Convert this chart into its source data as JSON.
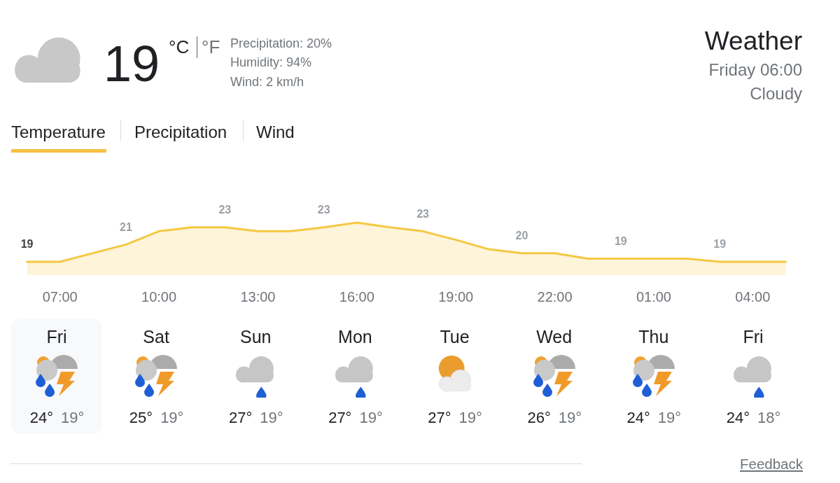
{
  "chart_data": [
    {
      "type": "area",
      "title": "Weather",
      "subtitle": "Friday 06:00",
      "categories": [
        null,
        "07:00",
        null,
        null,
        "10:00",
        null,
        null,
        "13:00",
        null,
        null,
        "16:00",
        null,
        null,
        "19:00",
        null,
        null,
        "22:00",
        null,
        null,
        "01:00",
        null,
        null,
        "04:00",
        null
      ],
      "values": [
        19,
        19,
        20.1,
        21.2,
        22.9,
        23.4,
        23.4,
        22.9,
        22.9,
        23.4,
        24,
        23.4,
        22.9,
        21.8,
        20.6,
        20.1,
        20.1,
        19.4,
        19.4,
        19.4,
        19.4,
        19,
        19,
        19
      ],
      "value_labels": [
        "19",
        null,
        null,
        "21",
        null,
        null,
        "23",
        null,
        null,
        "23",
        null,
        null,
        "23",
        null,
        null,
        "20",
        null,
        null,
        "19",
        null,
        null,
        "19",
        null,
        null
      ],
      "color": "#f5c842",
      "tick_labels": "x",
      "annotations": [
        "19",
        "°C",
        "°F",
        "Precipitation: 20%",
        "Humidity: 94%",
        "Wind: 2 km/h",
        "Cloudy",
        "Temperature",
        "Precipitation",
        "Wind"
      ]
    },
    {
      "type": "other",
      "annotations": [
        "Fri",
        "24°",
        "19°",
        "Sat",
        "25°",
        "19°",
        "Sun",
        "27°",
        "19°",
        "Mon",
        "27°",
        "19°",
        "Tue",
        "27°",
        "19°",
        "Wed",
        "26°",
        "19°",
        "Thu",
        "24°",
        "19°",
        "Fri",
        "24°",
        "18°",
        "Feedback"
      ]
    }
  ]
}
